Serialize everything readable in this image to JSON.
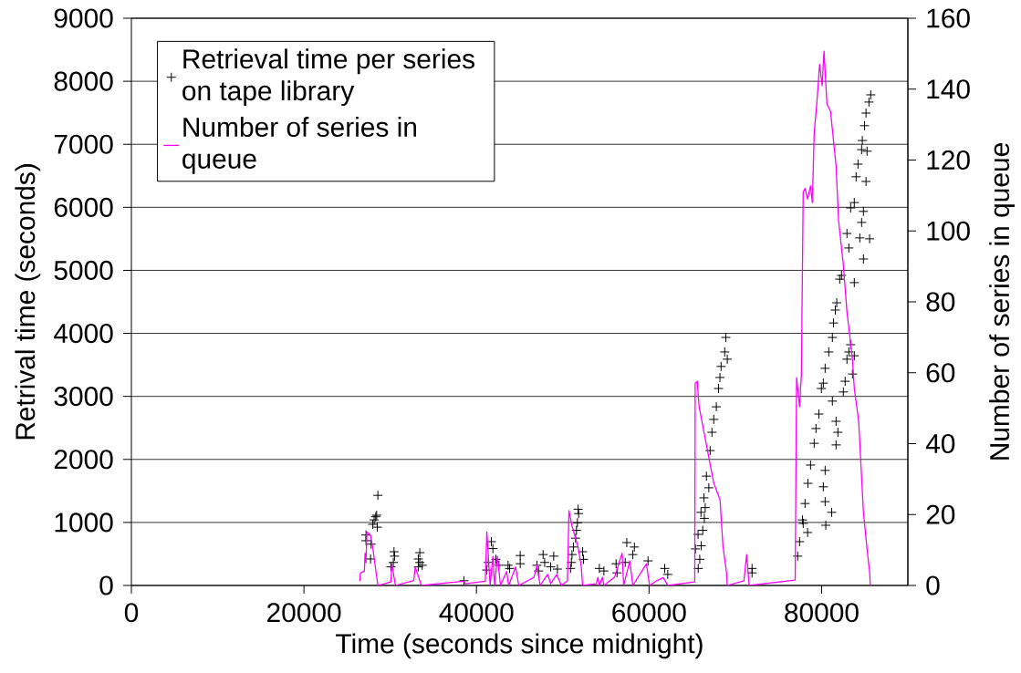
{
  "chart_data": {
    "type": "scatter",
    "xlabel": "Time (seconds since midnight)",
    "ylabel": "Retrival time (seconds)",
    "y2label": "Number of series in queue",
    "xlim": [
      0,
      90000
    ],
    "xticks": [
      0,
      20000,
      40000,
      60000,
      80000
    ],
    "ylim": [
      0,
      9000
    ],
    "yticks": [
      0,
      1000,
      2000,
      3000,
      4000,
      5000,
      6000,
      7000,
      8000,
      9000
    ],
    "y2lim": [
      0,
      160
    ],
    "y2ticks": [
      0,
      20,
      40,
      60,
      80,
      100,
      120,
      140,
      160
    ],
    "grid": "y",
    "legend": "top left",
    "series": [
      {
        "name": "Retrieval time per series on tape library",
        "type": "scatter",
        "color": "#000000",
        "marker": "cross",
        "x": [
          27190,
          27190,
          27790,
          27720,
          27970,
          28140,
          28320,
          28430,
          28500,
          28570,
          30440,
          30500,
          30360,
          30080,
          33430,
          33260,
          33430,
          33710,
          33260,
          38550,
          41720,
          41900,
          41370,
          41190,
          42250,
          42600,
          43660,
          43840,
          45070,
          45070,
          47010,
          47190,
          47720,
          47900,
          48950,
          48600,
          49380,
          51780,
          51840,
          51700,
          51590,
          51490,
          51240,
          51070,
          51000,
          50900,
          52300,
          52400,
          54240,
          54770,
          56180,
          56290,
          57420,
          58300,
          58120,
          57240,
          59880,
          61820,
          62170,
          65700,
          65880,
          66050,
          66230,
          66410,
          66510,
          66930,
          71940,
          71940,
          66650,
          66360,
          67080,
          67290,
          67500,
          67800,
          68050,
          68220,
          68350,
          68770,
          68900,
          69070,
          65380,
          65680,
          66020,
          77230,
          77450,
          77790,
          78080,
          78420,
          78720,
          79140,
          79350,
          79690,
          79980,
          80200,
          80410,
          80830,
          81250,
          81380,
          81590,
          81760,
          82100,
          82310,
          83790,
          81250,
          81680,
          81890,
          81680,
          80410,
          80200,
          80410,
          81170,
          80490,
          77870,
          78380,
          82520,
          82730,
          82940,
          83160,
          83370,
          83580,
          83790,
          82940,
          83160,
          84430,
          84640,
          85570,
          84850,
          83370,
          83790,
          84850,
          84000,
          85150,
          84220,
          84640,
          85270,
          84720,
          84980,
          85150,
          85490,
          85700
        ],
        "values": [
          800,
          710,
          655,
          420,
          970,
          1040,
          1090,
          1115,
          925,
          1430,
          535,
          465,
          365,
          295,
          520,
          420,
          365,
          320,
          295,
          75,
          695,
          585,
          365,
          245,
          415,
          320,
          320,
          270,
          475,
          345,
          320,
          230,
          490,
          365,
          465,
          295,
          260,
          1210,
          1140,
          995,
          875,
          750,
          610,
          490,
          365,
          270,
          535,
          415,
          270,
          230,
          345,
          200,
          680,
          610,
          490,
          365,
          390,
          270,
          175,
          270,
          415,
          630,
          875,
          1065,
          1235,
          1550,
          270,
          200,
          1735,
          1390,
          2140,
          2430,
          2635,
          2835,
          3125,
          3300,
          3475,
          3705,
          3935,
          3590,
          580,
          810,
          1160,
          465,
          695,
          1040,
          1300,
          1620,
          1910,
          2255,
          2490,
          2720,
          3125,
          3210,
          3445,
          3705,
          3935,
          4165,
          4370,
          4485,
          4860,
          4920,
          4805,
          2925,
          2605,
          2430,
          2230,
          1825,
          1565,
          1330,
          1160,
          955,
          985,
          840,
          3070,
          3240,
          3590,
          3705,
          3820,
          3355,
          3645,
          5585,
          5355,
          5515,
          5760,
          5500,
          5180,
          5990,
          6075,
          5935,
          6485,
          6410,
          6685,
          6915,
          6890,
          7060,
          7295,
          7495,
          7670,
          7785
        ]
      },
      {
        "name": "Number of series in queue",
        "type": "line",
        "axis": "y2",
        "color": "#ff00ff",
        "marker": "none",
        "x": [
          26480,
          26550,
          27010,
          27090,
          27190,
          27300,
          27720,
          27970,
          28570,
          30080,
          30190,
          30610,
          32730,
          32900,
          33080,
          33610,
          38550,
          38720,
          41020,
          41200,
          41580,
          41900,
          42100,
          42430,
          42780,
          43490,
          43730,
          44540,
          44900,
          46660,
          47020,
          47370,
          48250,
          48600,
          49310,
          49830,
          50540,
          50720,
          51070,
          51780,
          52130,
          52300,
          53890,
          54070,
          54250,
          54600,
          54770,
          56000,
          56880,
          57060,
          57770,
          58120,
          59700,
          60060,
          60940,
          61650,
          62170,
          65300,
          65350,
          65600,
          65700,
          65810,
          66450,
          67510,
          68230,
          68560,
          68980,
          69070,
          71000,
          71310,
          71610,
          76940,
          77100,
          77450,
          77660,
          77870,
          78080,
          78380,
          78720,
          78930,
          79140,
          79440,
          79770,
          80070,
          80280,
          80620,
          81040,
          81680,
          81970,
          82520,
          82940,
          83580,
          83790,
          84300,
          84850,
          85270,
          85570,
          85650
        ],
        "values": [
          1.2,
          3.5,
          4.1,
          9.1,
          6.5,
          15.1,
          14.2,
          10.8,
          0,
          1.0,
          6.1,
          0,
          1.4,
          5.2,
          3.9,
          0,
          1.2,
          0.5,
          1.2,
          15.1,
          0,
          8.2,
          0,
          8.2,
          0,
          3.9,
          0,
          5.2,
          0,
          2.3,
          5.7,
          0,
          3.1,
          0.5,
          3.1,
          0,
          1.3,
          21.1,
          16.8,
          10.8,
          5.7,
          0,
          0.5,
          2.3,
          0,
          2.3,
          0,
          2.3,
          9.1,
          0,
          6.9,
          0,
          6.1,
          0,
          1.4,
          2.2,
          0,
          1.0,
          57,
          57.6,
          53.5,
          50.4,
          42.2,
          28.8,
          24.2,
          11.3,
          3.6,
          0,
          1.3,
          8.7,
          0,
          1.5,
          58.6,
          50.4,
          59.7,
          111,
          112,
          109,
          112.7,
          108,
          127.6,
          135.8,
          147,
          141,
          150.7,
          135.8,
          133.7,
          118.3,
          102.9,
          90.5,
          77.2,
          63.8,
          55.6,
          46.3,
          20.6,
          10.3,
          3.6,
          0
        ]
      }
    ]
  }
}
